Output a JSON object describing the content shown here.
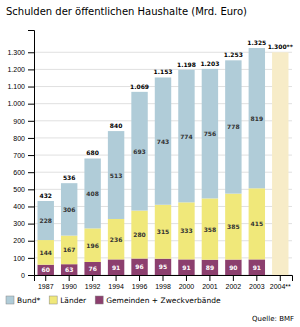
{
  "chart_data": {
    "type": "bar",
    "stacked": true,
    "title": "Schulden der öffentlichen Haushalte (Mrd. Euro)",
    "categories": [
      "1987",
      "1990",
      "1992",
      "1994",
      "1996",
      "1998",
      "2000",
      "2001",
      "2002",
      "2003",
      "2004**"
    ],
    "series": [
      {
        "name": "Gemeinden + Zweckverbände",
        "color": "#8c3f6e",
        "values": [
          60,
          63,
          76,
          91,
          96,
          95,
          91,
          89,
          90,
          91,
          null
        ]
      },
      {
        "name": "Länder",
        "color": "#f0e87a",
        "values": [
          144,
          167,
          196,
          236,
          280,
          315,
          333,
          358,
          385,
          415,
          null
        ]
      },
      {
        "name": "Bund*",
        "color": "#b0ccd8",
        "values": [
          228,
          306,
          408,
          513,
          693,
          743,
          774,
          756,
          778,
          819,
          null
        ]
      },
      {
        "color": "#f7ecc8",
        "data_labels": false,
        "values": [
          null,
          null,
          null,
          null,
          null,
          null,
          null,
          null,
          null,
          null,
          1300
        ]
      }
    ],
    "totals": {
      "values": [
        432,
        536,
        680,
        840,
        1069,
        1153,
        1198,
        1203,
        1253,
        1325,
        1300
      ],
      "value_labels": [
        "432",
        "536",
        "680",
        "840",
        "1.069",
        "1.153",
        "1.198",
        "1.203",
        "1.253",
        "1.325",
        "1.300**"
      ]
    },
    "data_labels": true,
    "ylim": [
      0,
      1430
    ],
    "yticks": [
      0,
      100,
      200,
      300,
      400,
      500,
      600,
      700,
      800,
      900,
      {
        "value": 1000,
        "label": "1.000"
      },
      {
        "value": 1100,
        "label": "1.100"
      },
      {
        "value": 1200,
        "label": "1.200"
      },
      {
        "value": 1300,
        "label": "1.300"
      }
    ],
    "grid": true,
    "legend": "lower left",
    "annotations": [
      "Quelle: BMF"
    ]
  }
}
